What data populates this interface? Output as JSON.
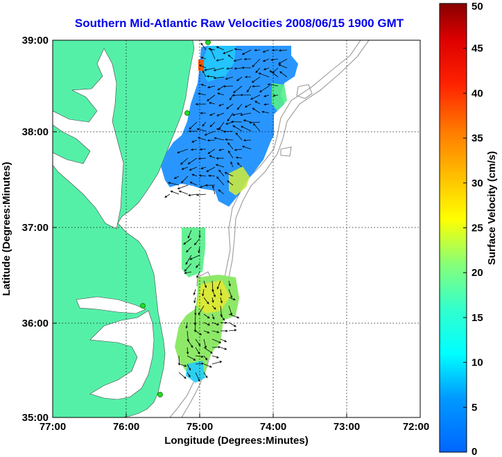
{
  "title": "Southern Mid-Atlantic Raw Velocities 2008/06/15 1900 GMT",
  "x_axis": {
    "label": "Longitude (Degrees:Minutes)",
    "ticks": [
      "77:00",
      "76:00",
      "75:00",
      "74:00",
      "73:00",
      "72:00"
    ]
  },
  "y_axis": {
    "label": "Latitude (Degrees:Minutes)",
    "ticks": [
      "39:00",
      "38:00",
      "37:00",
      "36:00",
      "35:00"
    ]
  },
  "colorbar": {
    "label": "Surface Velocity (cm/s)",
    "ticks": [
      "0",
      "5",
      "10",
      "15",
      "20",
      "25",
      "30",
      "35",
      "40",
      "45",
      "50"
    ],
    "min": 0,
    "max": 50
  },
  "colors": {
    "land": "#55f0a8",
    "water": "#ffffff",
    "title": "#0000ee",
    "station": "#22dd22",
    "bathymetry": "#999999"
  }
}
